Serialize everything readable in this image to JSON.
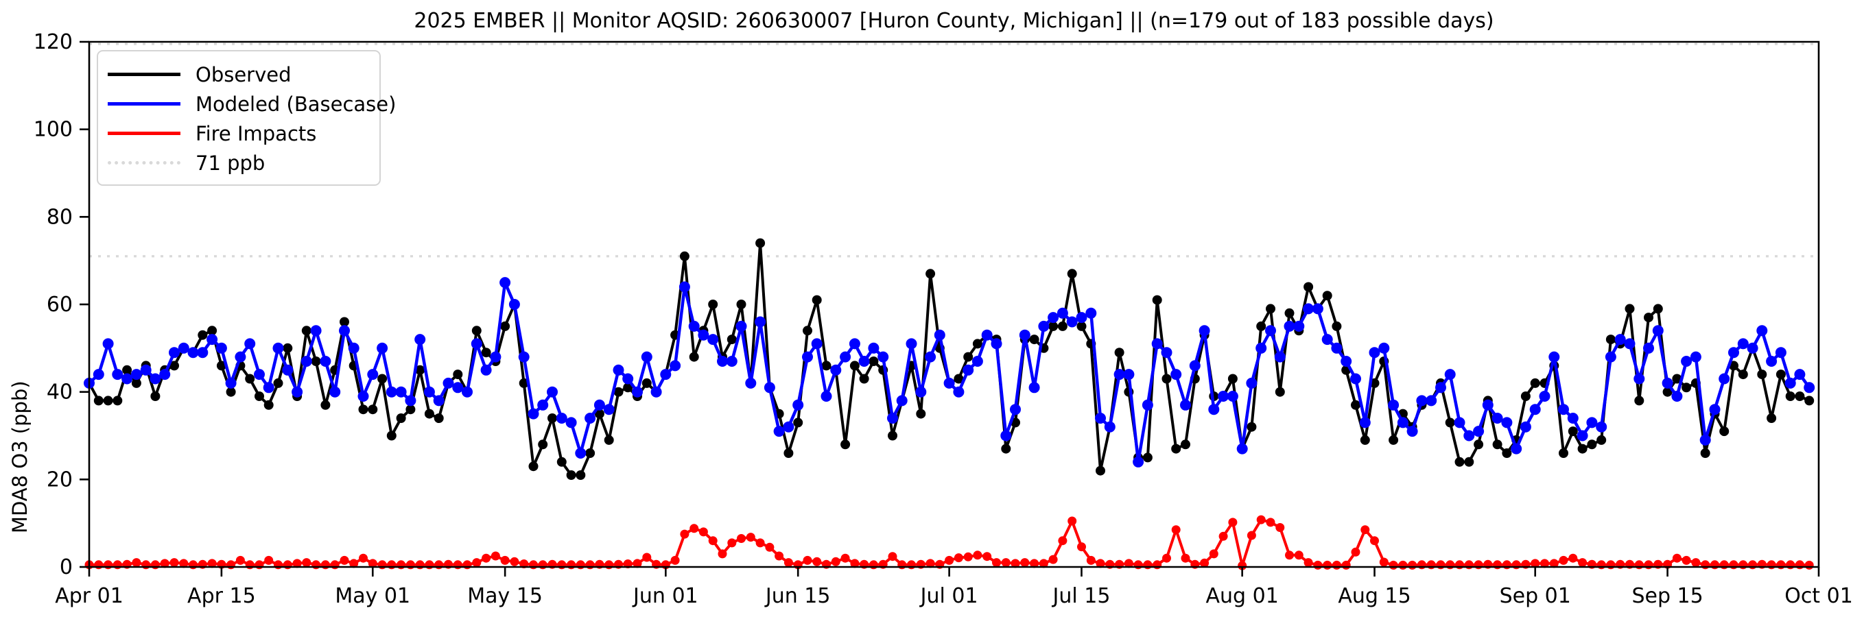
{
  "title": "2025 EMBER || Monitor AQSID: 260630007 [Huron County, Michigan] || (n=179 out of 183 possible days)",
  "colors": {
    "observed": "#000000",
    "modeled": "#0000ff",
    "fire": "#ff0000",
    "threshold": "#d9d9d9",
    "axis": "#000000"
  },
  "chart_data": {
    "type": "line",
    "title": "2025 EMBER || Monitor AQSID: 260630007 [Huron County, Michigan] || (n=179 out of 183 possible days)",
    "xlabel": "",
    "ylabel": "MDA8 O3 (ppb)",
    "ylim": [
      0,
      120
    ],
    "yticks": [
      0,
      20,
      40,
      60,
      80,
      100,
      120
    ],
    "x_start": "Apr 01",
    "x_end": "Oct 01",
    "x_range_days": 183,
    "xtick_days": [
      0,
      14,
      30,
      44,
      61,
      75,
      91,
      105,
      122,
      136,
      153,
      167,
      183
    ],
    "xtick_labels": [
      "Apr 01",
      "Apr 15",
      "May 01",
      "May 15",
      "Jun 01",
      "Jun 15",
      "Jul 01",
      "Jul 15",
      "Aug 01",
      "Aug 15",
      "Sep 01",
      "Sep 15",
      "Oct 01"
    ],
    "grid": "off",
    "legend_position": "upper-left",
    "thresholds": [
      {
        "value": 71,
        "label": "71 ppb"
      },
      {
        "value": 119.5,
        "label": ""
      }
    ],
    "series": [
      {
        "name": "Observed",
        "color": "#000000",
        "values": [
          42,
          38,
          38,
          38,
          45,
          42,
          46,
          39,
          45,
          46,
          50,
          49,
          53,
          54,
          46,
          40,
          46,
          43,
          39,
          37,
          42,
          50,
          39,
          54,
          47,
          37,
          45,
          56,
          46,
          36,
          36,
          43,
          30,
          34,
          36,
          45,
          35,
          34,
          42,
          44,
          40,
          54,
          49,
          47,
          55,
          60,
          42,
          23,
          28,
          34,
          24,
          21,
          21,
          26,
          35,
          29,
          40,
          41,
          39,
          42,
          40,
          44,
          53,
          71,
          48,
          54,
          60,
          48,
          52,
          60,
          42,
          74,
          41,
          35,
          26,
          33,
          54,
          61,
          46,
          45,
          28,
          46,
          43,
          47,
          45,
          30,
          38,
          46,
          35,
          67,
          50,
          42,
          43,
          48,
          51,
          53,
          52,
          27,
          33,
          52,
          52,
          50,
          55,
          55,
          67,
          55,
          51,
          22,
          32,
          49,
          40,
          25,
          25,
          61,
          43,
          27,
          28,
          43,
          53,
          39,
          39,
          43,
          27,
          32,
          55,
          59,
          40,
          58,
          54,
          64,
          59,
          62,
          55,
          45,
          37,
          29,
          42,
          47,
          29,
          35,
          32,
          37,
          38,
          42,
          33,
          24,
          24,
          28,
          38,
          28,
          26,
          29,
          39,
          42,
          42,
          46,
          26,
          31,
          27,
          28,
          29,
          52,
          51,
          59,
          38,
          57,
          59,
          40,
          43,
          41,
          42,
          26,
          35,
          31,
          46,
          44,
          50,
          44,
          34,
          44,
          39,
          39,
          38
        ]
      },
      {
        "name": "Modeled (Basecase)",
        "color": "#0000ff",
        "values": [
          42,
          44,
          51,
          44,
          43,
          44,
          45,
          43,
          44,
          49,
          50,
          49,
          49,
          52,
          50,
          42,
          48,
          51,
          44,
          41,
          50,
          45,
          40,
          47,
          54,
          47,
          40,
          54,
          50,
          39,
          44,
          50,
          40,
          40,
          38,
          52,
          40,
          38,
          42,
          41,
          40,
          51,
          45,
          48,
          65,
          60,
          48,
          35,
          37,
          40,
          34,
          33,
          26,
          34,
          37,
          36,
          45,
          43,
          40,
          48,
          40,
          44,
          46,
          64,
          55,
          53,
          52,
          47,
          47,
          55,
          42,
          56,
          41,
          31,
          32,
          37,
          48,
          51,
          39,
          45,
          48,
          51,
          47,
          50,
          48,
          34,
          38,
          51,
          40,
          48,
          53,
          42,
          40,
          45,
          47,
          53,
          51,
          30,
          36,
          53,
          41,
          55,
          57,
          58,
          56,
          57,
          58,
          34,
          32,
          44,
          44,
          24,
          37,
          51,
          49,
          44,
          37,
          46,
          54,
          36,
          39,
          39,
          27,
          42,
          50,
          54,
          48,
          55,
          55,
          59,
          59,
          52,
          50,
          47,
          43,
          33,
          49,
          50,
          37,
          33,
          31,
          38,
          38,
          41,
          44,
          33,
          30,
          31,
          37,
          34,
          33,
          27,
          32,
          36,
          39,
          48,
          36,
          34,
          30,
          33,
          32,
          48,
          52,
          51,
          43,
          50,
          54,
          42,
          39,
          47,
          48,
          29,
          36,
          43,
          49,
          51,
          50,
          54,
          47,
          49,
          42,
          44,
          41
        ]
      },
      {
        "name": "Fire Impacts",
        "color": "#ff0000",
        "values": [
          0.5,
          0.5,
          0.5,
          0.5,
          0.6,
          1.0,
          0.5,
          0.5,
          0.8,
          1.0,
          0.8,
          0.5,
          0.6,
          0.8,
          0.6,
          0.5,
          1.5,
          0.5,
          0.5,
          1.5,
          0.5,
          0.5,
          0.8,
          1.0,
          0.5,
          0.5,
          0.5,
          1.5,
          0.8,
          2.0,
          0.8,
          0.5,
          0.5,
          0.5,
          0.5,
          0.5,
          0.5,
          0.5,
          0.6,
          0.5,
          0.5,
          1.0,
          2.0,
          2.5,
          1.5,
          1.2,
          0.7,
          0.5,
          0.5,
          0.6,
          0.5,
          0.5,
          0.5,
          0.5,
          0.6,
          0.5,
          0.6,
          0.7,
          0.8,
          2.2,
          0.6,
          0.5,
          1.5,
          7.5,
          8.8,
          8.0,
          6.0,
          3.0,
          5.5,
          6.5,
          6.8,
          5.5,
          4.5,
          2.5,
          1.0,
          0.5,
          1.5,
          1.2,
          0.6,
          1.2,
          2.0,
          0.8,
          0.6,
          0.5,
          0.6,
          2.4,
          0.5,
          0.5,
          0.6,
          0.8,
          0.6,
          1.5,
          2.1,
          2.3,
          2.7,
          2.4,
          1.0,
          1.0,
          0.8,
          1.0,
          0.8,
          0.8,
          1.7,
          6.0,
          10.5,
          4.6,
          1.5,
          0.8,
          0.6,
          0.6,
          0.8,
          0.5,
          0.5,
          0.5,
          2.0,
          8.5,
          2.0,
          0.6,
          0.9,
          3.0,
          7.0,
          10.2,
          0.3,
          7.2,
          10.8,
          10.2,
          9.0,
          2.7,
          2.7,
          1.0,
          0.4,
          0.4,
          0.4,
          0.4,
          3.4,
          8.5,
          6.0,
          1.1,
          0.4,
          0.4,
          0.4,
          0.5,
          0.5,
          0.5,
          0.5,
          0.5,
          0.5,
          0.5,
          0.6,
          0.5,
          0.5,
          0.5,
          0.6,
          0.8,
          0.8,
          0.8,
          1.5,
          2.0,
          1.0,
          0.6,
          0.5,
          0.5,
          0.6,
          0.6,
          0.5,
          0.5,
          0.6,
          0.6,
          2.0,
          1.5,
          1.0,
          0.5,
          0.5,
          0.5,
          0.5,
          0.5,
          0.5,
          0.6,
          0.5,
          0.5,
          0.5,
          0.5,
          0.4
        ]
      }
    ]
  }
}
